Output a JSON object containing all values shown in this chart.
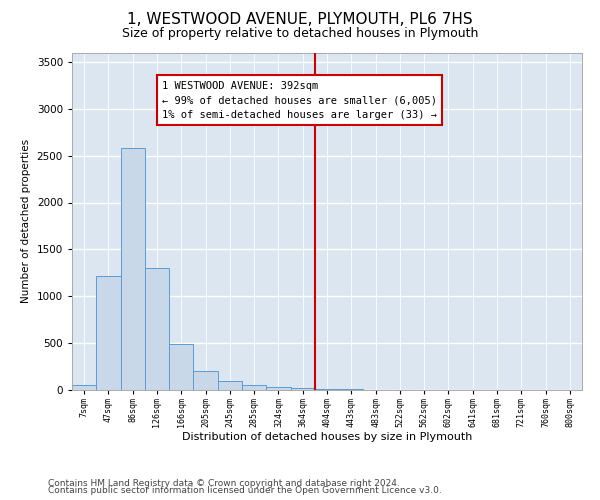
{
  "title": "1, WESTWOOD AVENUE, PLYMOUTH, PL6 7HS",
  "subtitle": "Size of property relative to detached houses in Plymouth",
  "xlabel": "Distribution of detached houses by size in Plymouth",
  "ylabel": "Number of detached properties",
  "bin_labels": [
    "7sqm",
    "47sqm",
    "86sqm",
    "126sqm",
    "166sqm",
    "205sqm",
    "245sqm",
    "285sqm",
    "324sqm",
    "364sqm",
    "404sqm",
    "443sqm",
    "483sqm",
    "522sqm",
    "562sqm",
    "602sqm",
    "641sqm",
    "681sqm",
    "721sqm",
    "760sqm",
    "800sqm"
  ],
  "bar_heights": [
    50,
    1220,
    2580,
    1300,
    490,
    200,
    100,
    50,
    30,
    20,
    10,
    10,
    5,
    5,
    3,
    2,
    2,
    1,
    1,
    1,
    0
  ],
  "bar_color": "#c8d8e8",
  "bar_edge_color": "#5b9bd5",
  "vline_x_index": 10,
  "vline_color": "#cc0000",
  "annotation_text": "1 WESTWOOD AVENUE: 392sqm\n← 99% of detached houses are smaller (6,005)\n1% of semi-detached houses are larger (33) →",
  "annotation_box_color": "#cc0000",
  "ylim": [
    0,
    3600
  ],
  "yticks": [
    0,
    500,
    1000,
    1500,
    2000,
    2500,
    3000,
    3500
  ],
  "plot_background": "#dce6f0",
  "grid_color": "#ffffff",
  "footer_line1": "Contains HM Land Registry data © Crown copyright and database right 2024.",
  "footer_line2": "Contains public sector information licensed under the Open Government Licence v3.0.",
  "title_fontsize": 11,
  "subtitle_fontsize": 9,
  "annotation_fontsize": 7.5,
  "footer_fontsize": 6.5,
  "ylabel_fontsize": 7.5,
  "xlabel_fontsize": 8
}
